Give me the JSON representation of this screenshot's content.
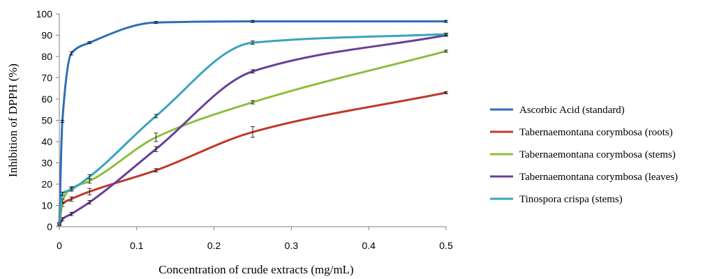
{
  "chart_data": {
    "type": "line",
    "xlabel": "Concentration of crude extracts (mg/mL)",
    "ylabel": "Inhibition of DPPH (%)",
    "xlim": [
      0,
      0.5
    ],
    "ylim": [
      0,
      100
    ],
    "x_ticks": [
      0,
      0.1,
      0.2,
      0.3,
      0.4,
      0.5
    ],
    "x_tick_labels": [
      "0",
      "0.1",
      "0.2",
      "0.3",
      "0.4",
      "0.5"
    ],
    "y_ticks": [
      0,
      10,
      20,
      30,
      40,
      50,
      60,
      70,
      80,
      90,
      100
    ],
    "y_tick_labels": [
      "0",
      "10",
      "20",
      "30",
      "40",
      "50",
      "60",
      "70",
      "80",
      "90",
      "100"
    ],
    "grid": false,
    "legend_position": "right",
    "x": [
      0,
      0.0039,
      0.0156,
      0.0391,
      0.125,
      0.25,
      0.5
    ],
    "series": [
      {
        "name": "Ascorbic Acid (standard)",
        "color": "#2e6db4",
        "values": [
          1.5,
          49.5,
          81.5,
          86.5,
          96.0,
          96.5,
          96.5
        ],
        "errors": [
          0.5,
          0.5,
          0.8,
          0.5,
          0.5,
          0.5,
          0.5
        ]
      },
      {
        "name": "Tabernaemontana corymbosa (roots)",
        "color": "#c0392b",
        "values": [
          1.0,
          10.5,
          13.0,
          16.5,
          26.5,
          44.5,
          63.0
        ],
        "errors": [
          0.5,
          1.0,
          1.0,
          1.5,
          0.8,
          2.5,
          0.5
        ]
      },
      {
        "name": "Tabernaemontana corymbosa (stems)",
        "color": "#8cbf3f",
        "values": [
          1.0,
          12.0,
          18.0,
          21.5,
          42.0,
          58.5,
          82.5
        ],
        "errors": [
          0.5,
          1.0,
          0.8,
          1.0,
          2.0,
          0.8,
          0.5
        ]
      },
      {
        "name": "Tabernaemontana corymbosa (leaves)",
        "color": "#6a3f9a",
        "values": [
          0.5,
          3.5,
          6.0,
          11.5,
          36.5,
          73.0,
          90.0
        ],
        "errors": [
          0.5,
          0.8,
          0.8,
          0.8,
          1.2,
          0.8,
          0.5
        ]
      },
      {
        "name": "Tinospora crispa (stems)",
        "color": "#3aa3bf",
        "values": [
          1.5,
          15.5,
          17.5,
          23.5,
          52.0,
          86.5,
          90.5
        ],
        "errors": [
          0.5,
          0.8,
          0.8,
          1.0,
          0.8,
          0.8,
          0.5
        ]
      }
    ]
  }
}
